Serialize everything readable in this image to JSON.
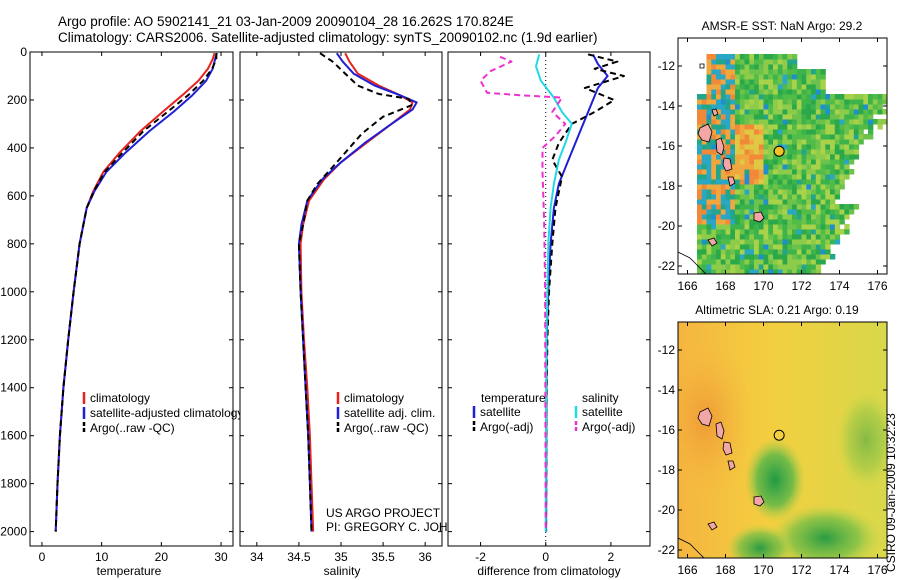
{
  "figure": {
    "title_line1": "Argo profile: AO 5902141_21 03-Jan-2009 20090104_28 16.262S 170.824E",
    "title_line2": "Climatology: CARS2006. Satellite-adjusted climatology: synTS_20090102.nc (1.9d earlier)",
    "credit": "CSIRO 09-Jan-2009 10:32:23",
    "project_line1": "US ARGO PROJECT",
    "project_line2": "PI: GREGORY C. JOHNSON"
  },
  "colors": {
    "red": "#e8231e",
    "blue": "#1f1fd6",
    "black": "#000000",
    "cyan": "#22d8e6",
    "magenta": "#ee30cf"
  },
  "chart_data": [
    {
      "type": "line",
      "id": "temperature",
      "xlabel": "temperature",
      "ylabel": "",
      "xlim": [
        -2,
        32
      ],
      "ylim": [
        2060,
        0
      ],
      "xticks": [
        0,
        10,
        20,
        30
      ],
      "yticks": [
        0,
        200,
        400,
        600,
        800,
        1000,
        1200,
        1400,
        1600,
        1800,
        2000
      ],
      "legend": [
        "climatology",
        "satellite-adjusted climatology",
        "Argo(..raw -QC)"
      ],
      "series": [
        {
          "name": "climatology",
          "color": "red",
          "dash": "",
          "points": [
            [
              28.9,
              5
            ],
            [
              28.6,
              30
            ],
            [
              27.8,
              70
            ],
            [
              26.2,
              120
            ],
            [
              23.5,
              180
            ],
            [
              20.2,
              250
            ],
            [
              16.5,
              330
            ],
            [
              13.0,
              420
            ],
            [
              10.3,
              500
            ],
            [
              8.6,
              580
            ],
            [
              7.5,
              650
            ],
            [
              6.3,
              800
            ],
            [
              5.3,
              1000
            ],
            [
              4.4,
              1200
            ],
            [
              3.6,
              1400
            ],
            [
              3.0,
              1600
            ],
            [
              2.6,
              1800
            ],
            [
              2.3,
              2000
            ]
          ]
        },
        {
          "name": "satellite-adjusted climatology",
          "color": "blue",
          "dash": "",
          "points": [
            [
              29.3,
              5
            ],
            [
              29.0,
              30
            ],
            [
              28.6,
              70
            ],
            [
              27.5,
              120
            ],
            [
              25.2,
              180
            ],
            [
              22.0,
              250
            ],
            [
              18.0,
              330
            ],
            [
              14.0,
              420
            ],
            [
              10.8,
              500
            ],
            [
              8.8,
              580
            ],
            [
              7.5,
              650
            ],
            [
              6.3,
              800
            ],
            [
              5.3,
              1000
            ],
            [
              4.4,
              1200
            ],
            [
              3.6,
              1400
            ],
            [
              3.0,
              1600
            ],
            [
              2.6,
              1800
            ],
            [
              2.3,
              2000
            ]
          ]
        },
        {
          "name": "Argo(..raw -QC)",
          "color": "black",
          "dash": "6 4",
          "points": [
            [
              29.2,
              5
            ],
            [
              29.2,
              30
            ],
            [
              28.5,
              70
            ],
            [
              27.0,
              120
            ],
            [
              24.5,
              180
            ],
            [
              21.0,
              250
            ],
            [
              17.0,
              330
            ],
            [
              13.5,
              420
            ],
            [
              10.5,
              500
            ],
            [
              8.7,
              580
            ],
            [
              7.5,
              650
            ],
            [
              6.3,
              800
            ],
            [
              5.3,
              1000
            ],
            [
              4.4,
              1200
            ],
            [
              3.6,
              1400
            ],
            [
              3.0,
              1600
            ],
            [
              2.6,
              1800
            ],
            [
              2.3,
              2000
            ]
          ]
        }
      ]
    },
    {
      "type": "line",
      "id": "salinity",
      "xlabel": "salinity",
      "xlim": [
        33.8,
        36.2
      ],
      "ylim": [
        2060,
        0
      ],
      "xticks": [
        34,
        34.5,
        35,
        35.5,
        36
      ],
      "legend": [
        "climatology",
        "satellite adj. clim.",
        "Argo(..raw -QC)"
      ],
      "series": [
        {
          "name": "climatology",
          "color": "red",
          "dash": "",
          "points": [
            [
              35.05,
              5
            ],
            [
              35.1,
              40
            ],
            [
              35.2,
              90
            ],
            [
              35.45,
              140
            ],
            [
              35.7,
              180
            ],
            [
              35.85,
              210
            ],
            [
              35.82,
              240
            ],
            [
              35.6,
              300
            ],
            [
              35.3,
              380
            ],
            [
              35.0,
              460
            ],
            [
              34.8,
              530
            ],
            [
              34.62,
              620
            ],
            [
              34.55,
              720
            ],
            [
              34.52,
              800
            ],
            [
              34.53,
              1000
            ],
            [
              34.56,
              1200
            ],
            [
              34.6,
              1400
            ],
            [
              34.63,
              1600
            ],
            [
              34.65,
              1800
            ],
            [
              34.67,
              2000
            ]
          ]
        },
        {
          "name": "satellite adj. clim.",
          "color": "blue",
          "dash": "",
          "points": [
            [
              34.95,
              5
            ],
            [
              35.02,
              40
            ],
            [
              35.15,
              90
            ],
            [
              35.4,
              140
            ],
            [
              35.7,
              180
            ],
            [
              35.9,
              210
            ],
            [
              35.85,
              240
            ],
            [
              35.6,
              300
            ],
            [
              35.28,
              380
            ],
            [
              35.0,
              460
            ],
            [
              34.78,
              530
            ],
            [
              34.6,
              620
            ],
            [
              34.53,
              720
            ],
            [
              34.5,
              800
            ],
            [
              34.52,
              1000
            ],
            [
              34.55,
              1200
            ],
            [
              34.58,
              1400
            ],
            [
              34.61,
              1600
            ],
            [
              34.63,
              1800
            ],
            [
              34.65,
              2000
            ]
          ]
        },
        {
          "name": "Argo(..raw -QC)",
          "color": "black",
          "dash": "6 4",
          "points": [
            [
              34.75,
              5
            ],
            [
              34.9,
              40
            ],
            [
              35.05,
              90
            ],
            [
              35.2,
              140
            ],
            [
              35.45,
              175
            ],
            [
              35.8,
              195
            ],
            [
              35.85,
              220
            ],
            [
              35.5,
              270
            ],
            [
              35.25,
              340
            ],
            [
              35.1,
              400
            ],
            [
              34.9,
              480
            ],
            [
              34.72,
              550
            ],
            [
              34.6,
              620
            ],
            [
              34.55,
              720
            ],
            [
              34.5,
              800
            ],
            [
              34.52,
              1000
            ],
            [
              34.55,
              1200
            ],
            [
              34.58,
              1400
            ],
            [
              34.61,
              1600
            ],
            [
              34.63,
              1800
            ],
            [
              34.65,
              2000
            ]
          ]
        }
      ]
    },
    {
      "type": "line",
      "id": "difference",
      "xlabel": "difference from climatology",
      "xlim": [
        -3,
        3.2
      ],
      "ylim": [
        2060,
        0
      ],
      "xticks": [
        -2,
        0,
        2
      ],
      "legend_titles": [
        "temperature",
        "salinity"
      ],
      "legend": [
        "satellite",
        "Argo(-adj)",
        "satellite",
        "Argo(-adj)"
      ],
      "series": [
        {
          "name": "temperature satellite",
          "color": "blue",
          "dash": "",
          "points": [
            [
              1.45,
              10
            ],
            [
              1.6,
              50
            ],
            [
              1.9,
              100
            ],
            [
              1.6,
              150
            ],
            [
              1.3,
              250
            ],
            [
              1.0,
              350
            ],
            [
              0.7,
              450
            ],
            [
              0.4,
              550
            ],
            [
              0.25,
              650
            ],
            [
              0.15,
              800
            ],
            [
              0.08,
              1000
            ],
            [
              0.03,
              1200
            ],
            [
              0.02,
              1500
            ],
            [
              0.01,
              2000
            ]
          ]
        },
        {
          "name": "temperature Argo(-adj)",
          "color": "black",
          "dash": "6 4",
          "points": [
            [
              1.3,
              10
            ],
            [
              2.2,
              40
            ],
            [
              1.5,
              70
            ],
            [
              2.4,
              100
            ],
            [
              1.2,
              150
            ],
            [
              2.1,
              200
            ],
            [
              1.5,
              250
            ],
            [
              0.8,
              300
            ],
            [
              0.4,
              380
            ],
            [
              0.2,
              450
            ],
            [
              0.5,
              520
            ],
            [
              0.3,
              650
            ],
            [
              0.2,
              800
            ],
            [
              0.1,
              1000
            ],
            [
              0.05,
              1200
            ],
            [
              0.02,
              1500
            ],
            [
              0.01,
              2000
            ]
          ]
        },
        {
          "name": "salinity satellite",
          "color": "cyan",
          "dash": "",
          "points": [
            [
              -0.2,
              10
            ],
            [
              -0.3,
              60
            ],
            [
              -0.15,
              120
            ],
            [
              0.25,
              190
            ],
            [
              0.5,
              250
            ],
            [
              0.8,
              300
            ],
            [
              0.6,
              380
            ],
            [
              0.4,
              450
            ],
            [
              0.25,
              550
            ],
            [
              0.15,
              650
            ],
            [
              0.08,
              800
            ],
            [
              0.05,
              1000
            ],
            [
              0.02,
              1200
            ],
            [
              0.01,
              1500
            ],
            [
              0.0,
              2000
            ]
          ]
        },
        {
          "name": "salinity Argo(-adj)",
          "color": "magenta",
          "dash": "6 4",
          "points": [
            [
              -1.4,
              20
            ],
            [
              -1.05,
              40
            ],
            [
              -1.7,
              80
            ],
            [
              -2.0,
              120
            ],
            [
              -1.8,
              170
            ],
            [
              -0.8,
              180
            ],
            [
              0.5,
              190
            ],
            [
              0.2,
              250
            ],
            [
              0.6,
              300
            ],
            [
              0.3,
              350
            ],
            [
              -0.1,
              400
            ],
            [
              -0.1,
              500
            ],
            [
              -0.05,
              700
            ],
            [
              -0.03,
              900
            ],
            [
              -0.02,
              1000
            ],
            [
              -0.01,
              1500
            ],
            [
              0.0,
              2000
            ]
          ]
        }
      ]
    },
    {
      "type": "heatmap",
      "id": "sst",
      "title": "AMSR-E SST: NaN Argo: 29.2",
      "xlim": [
        165.5,
        176.5
      ],
      "ylim": [
        -22.4,
        -10.6
      ],
      "xticks": [
        166,
        168,
        170,
        172,
        174,
        176
      ],
      "yticks": [
        -12,
        -14,
        -16,
        -18,
        -20,
        -22
      ],
      "argo_position": [
        170.824,
        -16.262
      ]
    },
    {
      "type": "heatmap",
      "id": "sla",
      "title": "Altimetric SLA: 0.21 Argo: 0.19",
      "xlim": [
        165.5,
        176.5
      ],
      "ylim": [
        -22.4,
        -10.6
      ],
      "xticks": [
        166,
        168,
        170,
        172,
        174,
        176
      ],
      "yticks": [
        -12,
        -14,
        -16,
        -18,
        -20,
        -22
      ],
      "argo_position": [
        170.824,
        -16.262
      ]
    }
  ]
}
